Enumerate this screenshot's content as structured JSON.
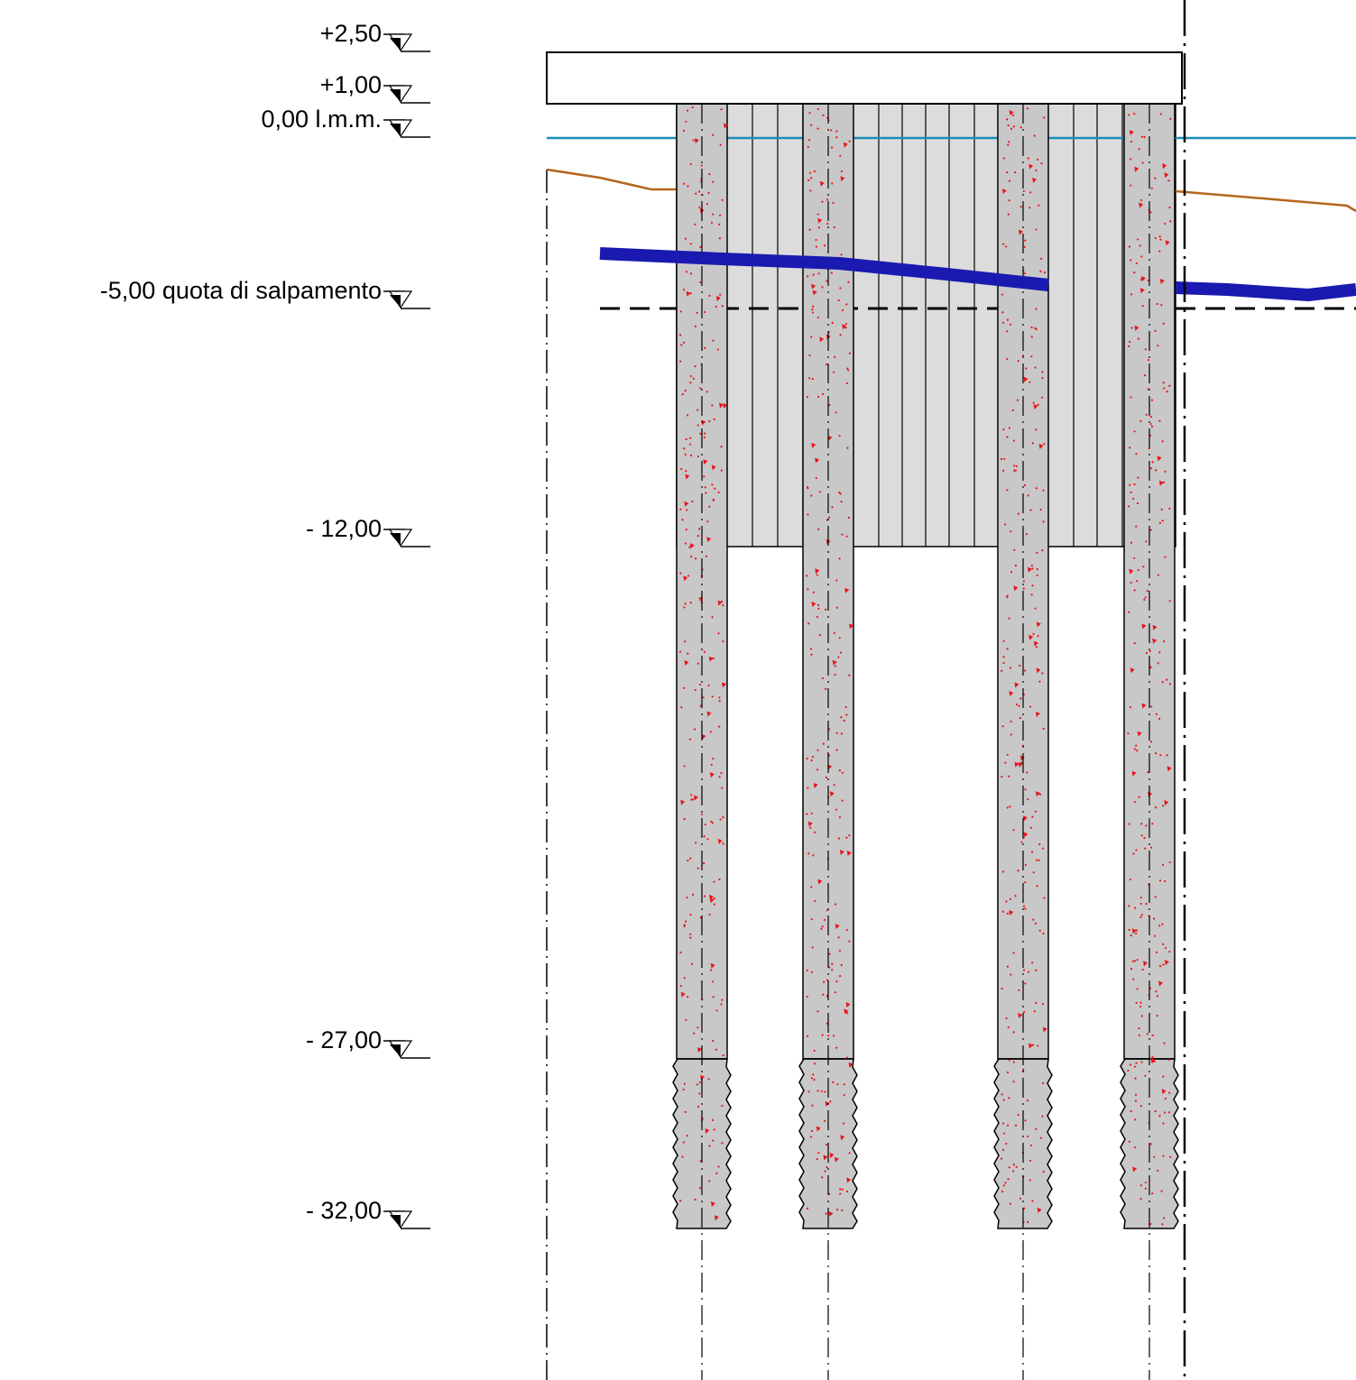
{
  "levels": [
    {
      "id": "top",
      "label": "+2,50"
    },
    {
      "id": "cap",
      "label": "+1,00"
    },
    {
      "id": "sea",
      "label": "0,00 l.m.m."
    },
    {
      "id": "salpamento",
      "label": "-5,00 quota di salpamento"
    },
    {
      "id": "jet",
      "label": "- 12,00"
    },
    {
      "id": "pile-end",
      "label": "- 27,00"
    },
    {
      "id": "tip",
      "label": "- 32,00"
    }
  ],
  "colors": {
    "sea_line": "#1a8fb8",
    "seabed_line": "#b5651d",
    "rock_line": "#1a1ab0",
    "pile_fill": "#c8c8c8",
    "pile_marks": "#e8141c",
    "jet_fill": "#dcdcdc",
    "outline": "#000000"
  },
  "piles": {
    "count": 4,
    "upper_part": "concrete pile",
    "lower_part": "toothed pile tip"
  }
}
